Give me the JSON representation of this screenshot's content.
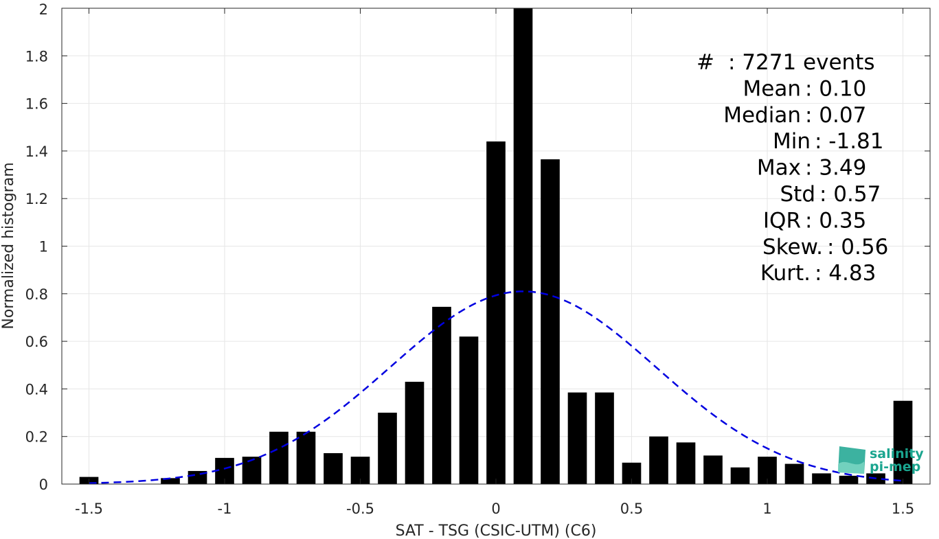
{
  "chart_data": {
    "type": "bar",
    "title": "",
    "xlabel": "SAT - TSG (CSIC-UTM) (C6)",
    "ylabel": "Normalized histogram",
    "xlim": [
      -1.6,
      1.6
    ],
    "ylim": [
      0,
      2
    ],
    "grid": true,
    "x_ticks": [
      -1.5,
      -1,
      -0.5,
      0,
      0.5,
      1,
      1.5
    ],
    "x_tick_labels": [
      "-1.5",
      "-1",
      "-0.5",
      "0",
      "0.5",
      "1",
      "1.5"
    ],
    "y_ticks": [
      0,
      0.2,
      0.4,
      0.6,
      0.8,
      1,
      1.2,
      1.4,
      1.6,
      1.8,
      2
    ],
    "y_tick_labels": [
      "0",
      "0.2",
      "0.4",
      "0.6",
      "0.8",
      "1",
      "1.2",
      "1.4",
      "1.6",
      "1.8",
      "2"
    ],
    "bar_width": 0.07,
    "bar_color": "#000000",
    "x": [
      -1.5,
      -1.4,
      -1.3,
      -1.2,
      -1.1,
      -1.0,
      -0.9,
      -0.8,
      -0.7,
      -0.6,
      -0.5,
      -0.4,
      -0.3,
      -0.2,
      -0.1,
      0.0,
      0.1,
      0.2,
      0.3,
      0.4,
      0.5,
      0.6,
      0.7,
      0.8,
      0.9,
      1.0,
      1.1,
      1.2,
      1.3,
      1.4,
      1.5
    ],
    "values": [
      0.03,
      0.0,
      0.0,
      0.025,
      0.055,
      0.11,
      0.115,
      0.22,
      0.22,
      0.13,
      0.115,
      0.3,
      0.43,
      0.745,
      0.62,
      1.44,
      2.0,
      1.365,
      0.385,
      0.385,
      0.09,
      0.2,
      0.175,
      0.12,
      0.07,
      0.115,
      0.085,
      0.045,
      0.035,
      0.045,
      0.35
    ],
    "fit_curve": {
      "style": "dashed",
      "color": "#0000e0",
      "mean": 0.1,
      "std": 0.49,
      "peak": 0.81,
      "x_range": [
        -1.5,
        1.5
      ]
    },
    "stats": [
      {
        "label": "#  ",
        "value": ": 7271 events"
      },
      {
        "label": "Mean",
        "value": ": 0.10"
      },
      {
        "label": "Median",
        "value": ": 0.07"
      },
      {
        "label": "Min",
        "value": ": -1.81"
      },
      {
        "label": "Max",
        "value": ": 3.49"
      },
      {
        "label": "Std",
        "value": ": 0.57"
      },
      {
        "label": "IQR",
        "value": ": 0.35"
      },
      {
        "label": "Skew.",
        "value": ": 0.56"
      },
      {
        "label": "Kurt.",
        "value": ": 4.83"
      }
    ]
  },
  "logo": {
    "line1": "salinity",
    "line2": "pi-mep",
    "color": "#1aa58f"
  }
}
